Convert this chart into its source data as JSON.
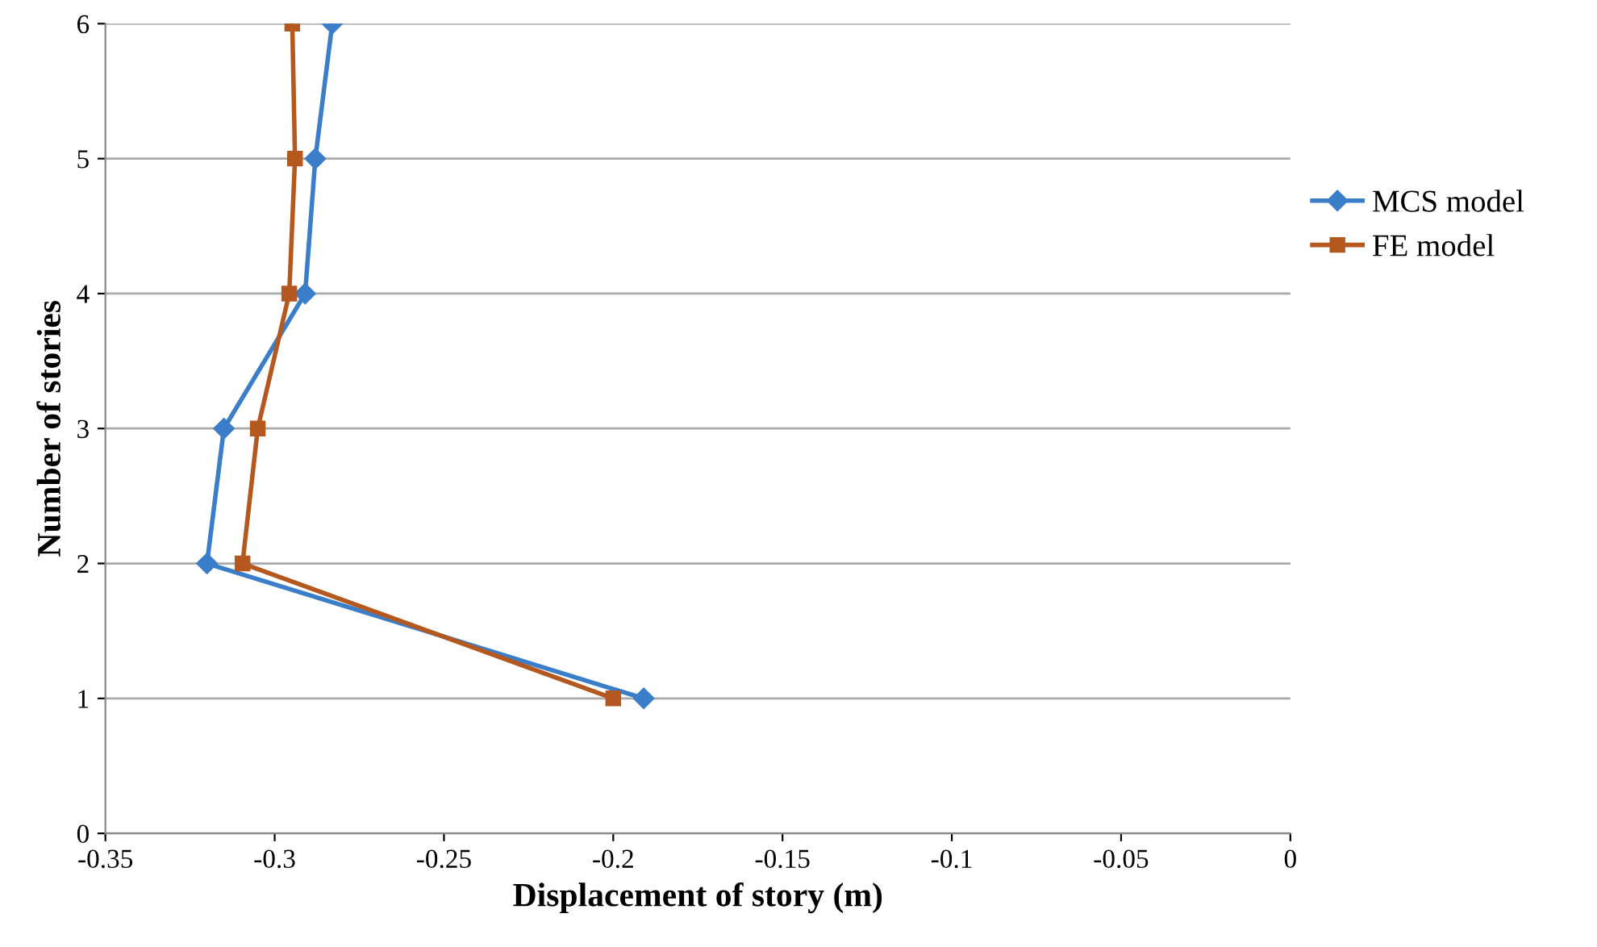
{
  "chart_data": {
    "type": "line",
    "xlabel": "Displacement of story (m)",
    "ylabel": "Number of stories",
    "series": [
      {
        "name": "MCS model",
        "color": "#3a7dc9",
        "marker": "diamond",
        "x": [
          -0.191,
          -0.32,
          -0.315,
          -0.291,
          -0.288,
          -0.283
        ],
        "values": [
          1,
          2,
          3,
          4,
          5,
          6
        ]
      },
      {
        "name": "FE model",
        "color": "#b5581f",
        "marker": "square",
        "x": [
          -0.2,
          -0.3095,
          -0.305,
          -0.2957,
          -0.294,
          -0.2948
        ],
        "values": [
          1,
          2,
          3,
          4,
          5,
          6
        ]
      }
    ],
    "xlim": [
      -0.35,
      0
    ],
    "xticks": [
      -0.35,
      -0.3,
      -0.25,
      -0.2,
      -0.15,
      -0.1,
      -0.05,
      0
    ],
    "ylim": [
      0,
      6
    ],
    "yticks": [
      0,
      1,
      2,
      3,
      4,
      5,
      6
    ],
    "grid": "y",
    "legend": "right",
    "line_style": "solid"
  }
}
